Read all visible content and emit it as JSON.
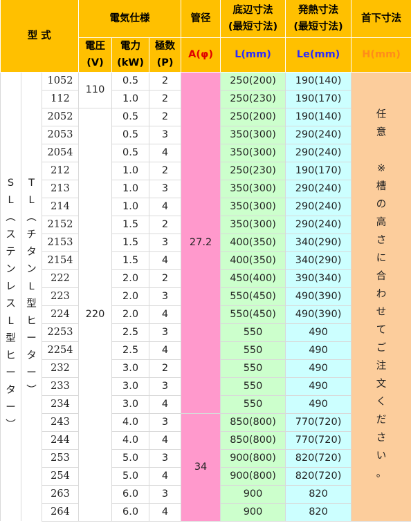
{
  "header": {
    "model": "型 式",
    "electrical": "電気仕様",
    "voltage": "電圧",
    "voltage_unit": "(V)",
    "power": "電力",
    "power_unit": "(kW)",
    "poles": "極数",
    "poles_unit": "(P)",
    "pipe_dia": "管径",
    "pipe_dia_sym": "A(φ)",
    "bottom_len": "底辺寸法",
    "bottom_len_sub": "(最短寸法)",
    "bottom_len_sym": "L(mm)",
    "heat_len": "発熱寸法",
    "heat_len_sub": "(最短寸法)",
    "heat_len_sym": "Le(mm)",
    "neck_len": "首下寸法",
    "neck_len_sym": "H(mm)"
  },
  "type_sl": [
    "S",
    "L",
    "︵",
    "ス",
    "テ",
    "ン",
    "レ",
    "ス",
    "L",
    "型",
    "ヒ",
    "ー",
    "タ",
    "ー",
    "︶"
  ],
  "type_tl": [
    "T",
    "L",
    "︵",
    "チ",
    "タ",
    "ン",
    "L",
    "型",
    "ヒ",
    "ー",
    "タ",
    "ー",
    "︶"
  ],
  "neck_note": [
    "任",
    "意",
    "",
    "※",
    "槽",
    "の",
    "高",
    "さ",
    "に",
    "合",
    "わ",
    "せ",
    "て",
    "ご",
    "注",
    "文",
    "く",
    "だ",
    "さ",
    "い",
    "。"
  ],
  "voltage_groups": [
    "110",
    "220"
  ],
  "pipe_groups": [
    "27.2",
    "34"
  ],
  "rows": [
    {
      "model": "1052",
      "power": "0.5",
      "poles": "2",
      "L": "250(200)",
      "Le": "190(140)"
    },
    {
      "model": "112",
      "power": "1.0",
      "poles": "2",
      "L": "250(230)",
      "Le": "190(170)"
    },
    {
      "model": "2052",
      "power": "0.5",
      "poles": "2",
      "L": "250(200)",
      "Le": "190(140)"
    },
    {
      "model": "2053",
      "power": "0.5",
      "poles": "3",
      "L": "350(300)",
      "Le": "290(240)"
    },
    {
      "model": "2054",
      "power": "0.5",
      "poles": "4",
      "L": "350(300)",
      "Le": "290(240)"
    },
    {
      "model": "212",
      "power": "1.0",
      "poles": "2",
      "L": "250(230)",
      "Le": "190(170)"
    },
    {
      "model": "213",
      "power": "1.0",
      "poles": "3",
      "L": "350(300)",
      "Le": "290(240)"
    },
    {
      "model": "214",
      "power": "1.0",
      "poles": "4",
      "L": "350(300)",
      "Le": "290(240)"
    },
    {
      "model": "2152",
      "power": "1.5",
      "poles": "2",
      "L": "350(300)",
      "Le": "290(240)"
    },
    {
      "model": "2153",
      "power": "1.5",
      "poles": "3",
      "L": "400(350)",
      "Le": "340(290)"
    },
    {
      "model": "2154",
      "power": "1.5",
      "poles": "4",
      "L": "400(350)",
      "Le": "340(290)"
    },
    {
      "model": "222",
      "power": "2.0",
      "poles": "2",
      "L": "450(400)",
      "Le": "390(340)"
    },
    {
      "model": "223",
      "power": "2.0",
      "poles": "3",
      "L": "550(450)",
      "Le": "490(390)"
    },
    {
      "model": "224",
      "power": "2.0",
      "poles": "4",
      "L": "550(450)",
      "Le": "490(390)"
    },
    {
      "model": "2253",
      "power": "2.5",
      "poles": "3",
      "L": "550",
      "Le": "490"
    },
    {
      "model": "2254",
      "power": "2.5",
      "poles": "4",
      "L": "550",
      "Le": "490"
    },
    {
      "model": "232",
      "power": "3.0",
      "poles": "2",
      "L": "550",
      "Le": "490"
    },
    {
      "model": "233",
      "power": "3.0",
      "poles": "3",
      "L": "550",
      "Le": "490"
    },
    {
      "model": "234",
      "power": "3.0",
      "poles": "4",
      "L": "550",
      "Le": "490"
    },
    {
      "model": "243",
      "power": "4.0",
      "poles": "3",
      "L": "850(800)",
      "Le": "770(720)"
    },
    {
      "model": "244",
      "power": "4.0",
      "poles": "4",
      "L": "850(800)",
      "Le": "770(720)"
    },
    {
      "model": "253",
      "power": "5.0",
      "poles": "3",
      "L": "900(800)",
      "Le": "820(720)"
    },
    {
      "model": "254",
      "power": "5.0",
      "poles": "4",
      "L": "900(800)",
      "Le": "820(720)"
    },
    {
      "model": "263",
      "power": "6.0",
      "poles": "3",
      "L": "900",
      "Le": "820"
    },
    {
      "model": "264",
      "power": "6.0",
      "poles": "4",
      "L": "900",
      "Le": "820"
    }
  ],
  "colors": {
    "header_bg": "#ffc000",
    "pipe_bg": "#ff99cc",
    "L_bg": "#ccffcc",
    "Le_bg": "#ccffff",
    "H_bg": "#fccd9c",
    "pipe_sym_color": "#e00000",
    "len_sym_color": "#2a2aff",
    "neck_sym_color": "#ff8c1a"
  }
}
